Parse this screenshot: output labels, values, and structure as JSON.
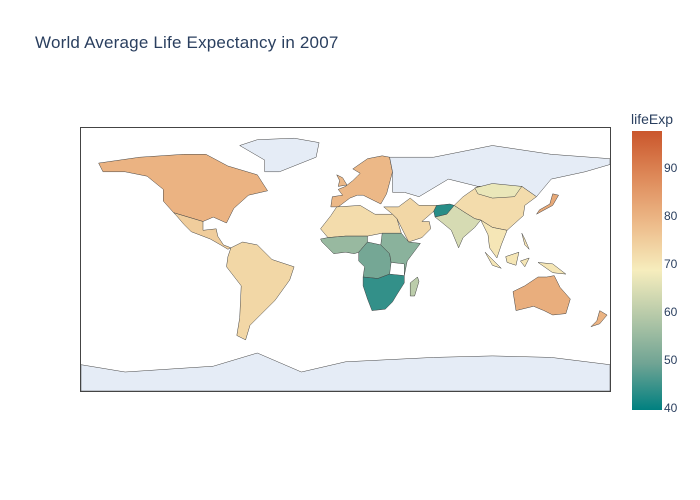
{
  "title": "World Average Life Expectancy in 2007",
  "colorbar": {
    "title": "lifeExp",
    "ticks": [
      "90",
      "80",
      "70",
      "60",
      "50",
      "40"
    ],
    "tick_values": [
      90,
      80,
      70,
      60,
      50,
      40
    ],
    "range": [
      39.6,
      97.8
    ],
    "colorscale": [
      "#008080",
      "#70a494",
      "#b4c8a8",
      "#f6edbd",
      "#edbb8a",
      "#de8a5a",
      "#ca562c"
    ]
  },
  "colors": {
    "land_no_data": "#e5ecf6",
    "border": "#444444"
  },
  "chart_data": {
    "type": "choropleth",
    "title": "World Average Life Expectancy in 2007",
    "colorbar_label": "lifeExp",
    "colorbar_range": [
      39.6,
      97.8
    ],
    "regions": [
      {
        "name": "North America",
        "value": 80
      },
      {
        "name": "Greenland",
        "value": null
      },
      {
        "name": "Mexico / Central America",
        "value": 75
      },
      {
        "name": "South America",
        "value": 73
      },
      {
        "name": "Europe",
        "value": 79
      },
      {
        "name": "Russia",
        "value": null
      },
      {
        "name": "North Africa",
        "value": 72
      },
      {
        "name": "West Africa",
        "value": 55
      },
      {
        "name": "Central Africa",
        "value": 50
      },
      {
        "name": "East Africa",
        "value": 53
      },
      {
        "name": "Southern Africa",
        "value": 44
      },
      {
        "name": "Madagascar",
        "value": 60
      },
      {
        "name": "Middle East",
        "value": 73
      },
      {
        "name": "Afghanistan",
        "value": 43
      },
      {
        "name": "South Asia",
        "value": 64
      },
      {
        "name": "China",
        "value": 72
      },
      {
        "name": "Mongolia",
        "value": 67
      },
      {
        "name": "Japan",
        "value": 82
      },
      {
        "name": "Southeast Asia",
        "value": 70
      },
      {
        "name": "Australia",
        "value": 81
      },
      {
        "name": "New Zealand",
        "value": 80
      },
      {
        "name": "Antarctica",
        "value": null
      }
    ]
  }
}
